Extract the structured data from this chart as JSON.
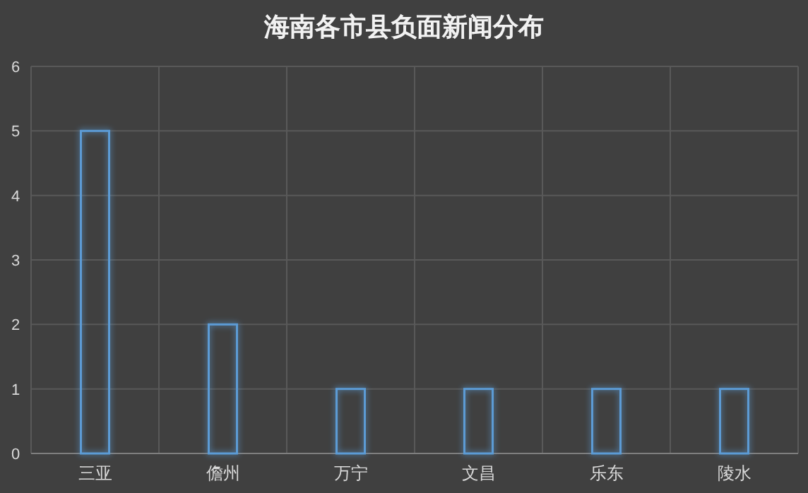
{
  "chart_data": {
    "type": "bar",
    "title": "海南各市县负面新闻分布",
    "categories": [
      "三亚",
      "儋州",
      "万宁",
      "文昌",
      "乐东",
      "陵水"
    ],
    "values": [
      5,
      2,
      1,
      1,
      1,
      1
    ],
    "color": "#5b9bd5",
    "ylim": [
      0,
      6
    ],
    "yticks": [
      0,
      1,
      2,
      3,
      4,
      5,
      6
    ],
    "grid": true
  }
}
